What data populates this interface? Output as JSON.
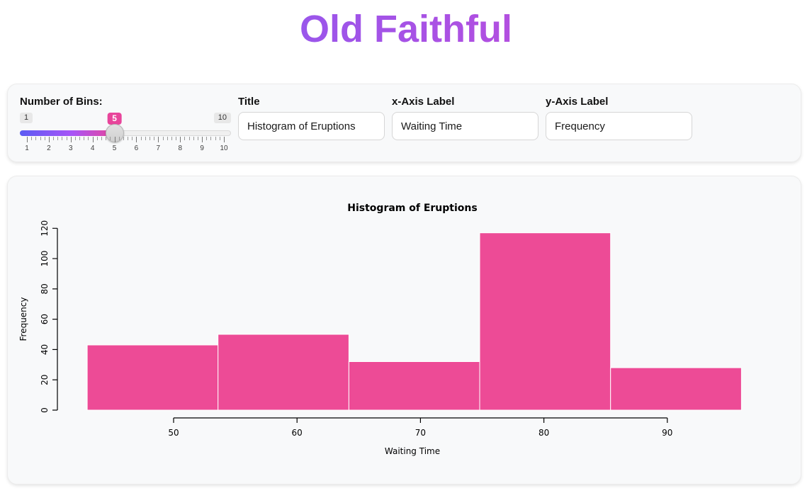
{
  "app": {
    "title": "Old Faithful"
  },
  "controls": {
    "bins": {
      "label": "Number of Bins:",
      "min": 1,
      "max": 10,
      "value": 5,
      "tick_values": [
        1,
        2,
        3,
        4,
        5,
        6,
        7,
        8,
        9,
        10
      ]
    },
    "title_input": {
      "label": "Title",
      "value": "Histogram of Eruptions"
    },
    "xlabel_input": {
      "label": "x-Axis Label",
      "value": "Waiting Time"
    },
    "ylabel_input": {
      "label": "y-Axis Label",
      "value": "Frequency"
    }
  },
  "chart_data": {
    "type": "bar",
    "subtype": "histogram",
    "title": "Histogram of Eruptions",
    "xlabel": "Waiting Time",
    "ylabel": "Frequency",
    "bin_edges": [
      43,
      53.6,
      64.2,
      74.8,
      85.4,
      96
    ],
    "counts": [
      43,
      50,
      32,
      117,
      28
    ],
    "x_ticks": [
      50,
      60,
      70,
      80,
      90
    ],
    "y_ticks": [
      0,
      20,
      40,
      60,
      80,
      100,
      120
    ],
    "ylim": [
      0,
      120
    ],
    "grid": false,
    "legend": false,
    "bar_color": "#ed4b96",
    "bar_border_color": "#ffffff",
    "axis_color": "#000000"
  },
  "colors": {
    "header_gradient_start": "#8a5af2",
    "header_gradient_end": "#c24bd9",
    "slider_fill_start": "#5b5bf3",
    "slider_fill_end": "#e8459b",
    "value_badge": "#e8459b",
    "card_background": "#f8f9fa"
  }
}
